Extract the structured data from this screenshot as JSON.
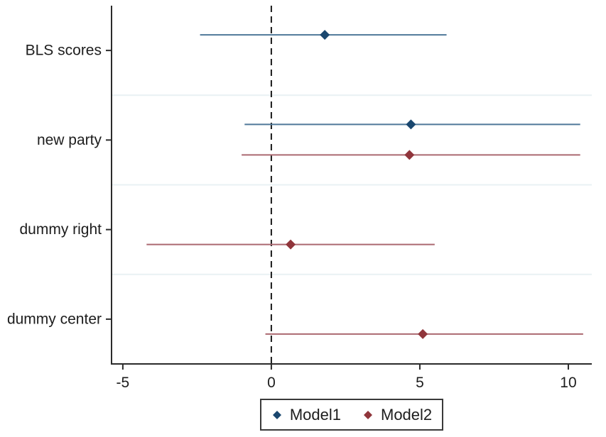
{
  "figure": {
    "background": "#ffffff"
  },
  "chart_data": {
    "type": "scatter",
    "subtype": "coefficient-plot-horizontal-ci",
    "title": "",
    "xlabel": "",
    "ylabel": "",
    "categories": [
      "BLS scores",
      "new party",
      "dummy right",
      "dummy center"
    ],
    "series": [
      {
        "name": "Model1",
        "marker": "diamond",
        "marker_color": "#1a476f",
        "line_color": "#4f7899",
        "points": [
          {
            "category": "BLS scores",
            "estimate": 1.8,
            "ci_low": -2.4,
            "ci_high": 5.9
          },
          {
            "category": "new party",
            "estimate": 4.7,
            "ci_low": -0.9,
            "ci_high": 10.4
          }
        ]
      },
      {
        "name": "Model2",
        "marker": "diamond",
        "marker_color": "#90353b",
        "line_color": "#ab6970",
        "points": [
          {
            "category": "new party",
            "estimate": 4.65,
            "ci_low": -1.0,
            "ci_high": 10.4
          },
          {
            "category": "dummy right",
            "estimate": 0.65,
            "ci_low": -4.2,
            "ci_high": 5.5
          },
          {
            "category": "dummy center",
            "estimate": 5.1,
            "ci_low": -0.2,
            "ci_high": 10.5
          }
        ]
      }
    ],
    "x_ticks": [
      -5,
      0,
      5,
      10
    ],
    "x_tick_labels": [
      "-5",
      "0",
      "5",
      "10"
    ],
    "xlim": [
      -5.38,
      10.79
    ],
    "reference_line_x": 0,
    "reference_line_style": "dashed",
    "grid": "horizontal-between-categories",
    "legend_position": "bottom-center",
    "legend": {
      "items": [
        {
          "label": "Model1",
          "color": "#1a476f"
        },
        {
          "label": "Model2",
          "color": "#90353b"
        }
      ]
    },
    "axis_color": "#2b2b2b",
    "gridline_color": "#e9f1f4",
    "text_color": "#1d1d1d"
  }
}
